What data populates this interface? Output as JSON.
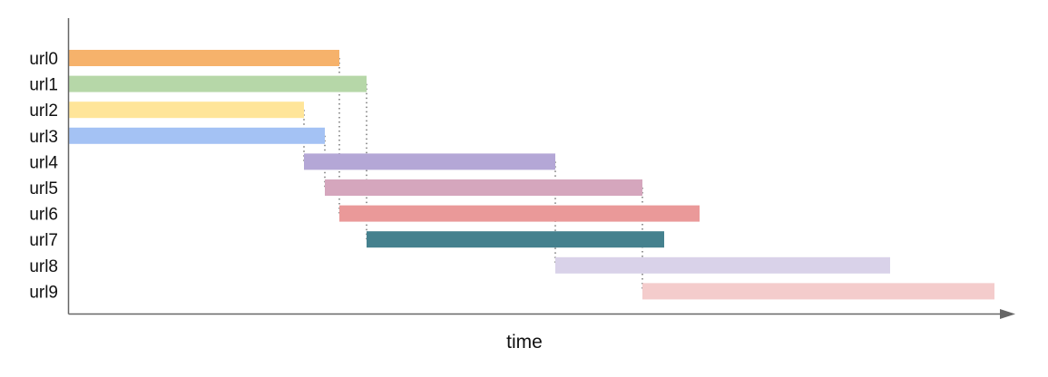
{
  "chart_data": {
    "type": "gantt",
    "xlabel": "time",
    "rows": [
      {
        "label": "url0",
        "start": 0,
        "end": 298,
        "color": "#f6b26b"
      },
      {
        "label": "url1",
        "start": 0,
        "end": 328,
        "color": "#b6d7a8"
      },
      {
        "label": "url2",
        "start": 0,
        "end": 259,
        "color": "#ffe599"
      },
      {
        "label": "url3",
        "start": 0,
        "end": 282,
        "color": "#a4c2f4"
      },
      {
        "label": "url4",
        "start": 259,
        "end": 536,
        "color": "#b4a7d6"
      },
      {
        "label": "url5",
        "start": 282,
        "end": 632,
        "color": "#d5a6bd"
      },
      {
        "label": "url6",
        "start": 298,
        "end": 695,
        "color": "#ea9999"
      },
      {
        "label": "url7",
        "start": 328,
        "end": 656,
        "color": "#45818e"
      },
      {
        "label": "url8",
        "start": 536,
        "end": 905,
        "color": "#d9d2e9"
      },
      {
        "label": "url9",
        "start": 632,
        "end": 1020,
        "color": "#f4cccc"
      }
    ],
    "dependencies": [
      {
        "from": "url0",
        "to": "url6"
      },
      {
        "from": "url1",
        "to": "url7"
      },
      {
        "from": "url2",
        "to": "url4"
      },
      {
        "from": "url3",
        "to": "url5"
      },
      {
        "from": "url4",
        "to": "url8"
      },
      {
        "from": "url5",
        "to": "url9"
      }
    ],
    "axis_color": "#666666",
    "connector_color": "#555555"
  }
}
